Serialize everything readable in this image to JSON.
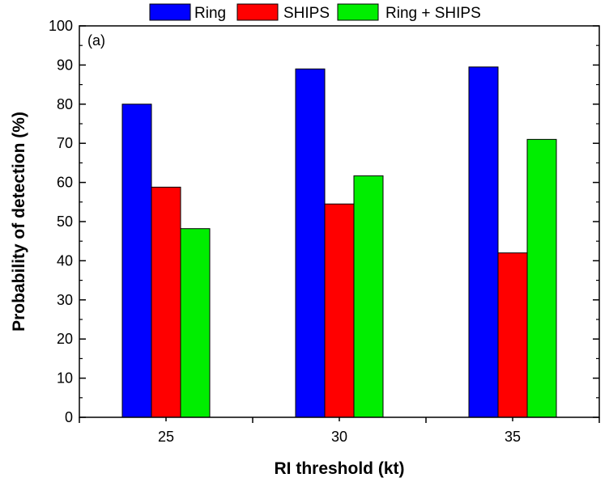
{
  "chart_data": {
    "type": "bar",
    "categories": [
      "25",
      "30",
      "35"
    ],
    "series": [
      {
        "name": "Ring",
        "color": "#0000ff",
        "values": [
          80,
          89,
          89.5
        ]
      },
      {
        "name": "SHIPS",
        "color": "#ff0000",
        "values": [
          58.8,
          54.5,
          42
        ]
      },
      {
        "name": "Ring + SHIPS",
        "color": "#00ee00",
        "values": [
          48.2,
          61.7,
          71
        ]
      }
    ],
    "title": "",
    "panel_label": "(a)",
    "xlabel": "RI threshold (kt)",
    "ylabel": "Probability of detection (%)",
    "ylim": [
      0,
      100
    ],
    "yticks": [
      "0",
      "10",
      "20",
      "30",
      "40",
      "50",
      "60",
      "70",
      "80",
      "90",
      "100"
    ],
    "grid": false,
    "legend_position": "top"
  }
}
